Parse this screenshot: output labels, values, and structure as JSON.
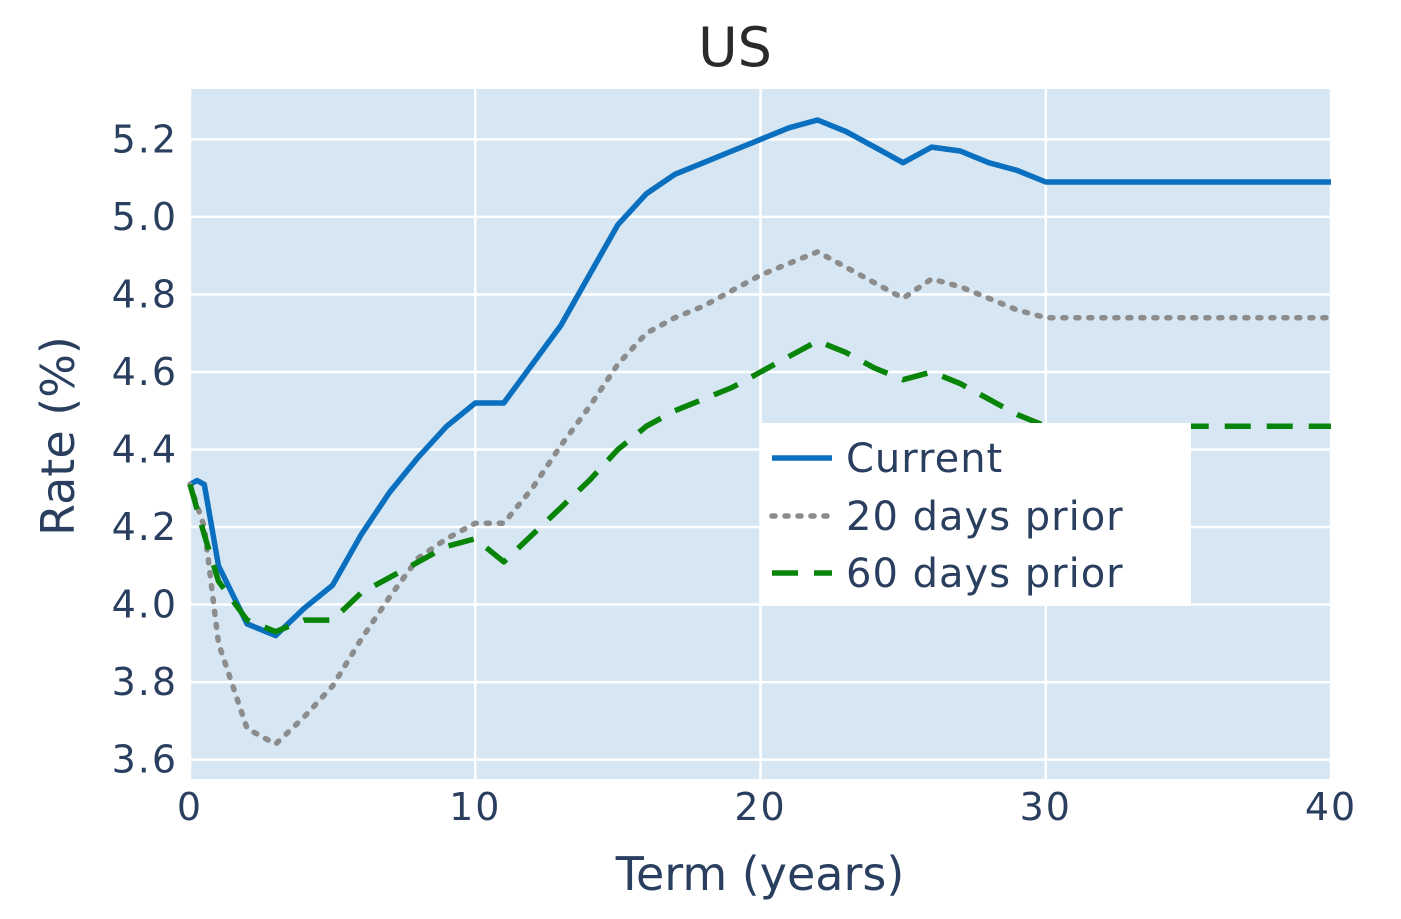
{
  "chart_data": {
    "type": "line",
    "title": "US",
    "xlabel": "Term (years)",
    "ylabel": "Rate (%)",
    "xlim": [
      0,
      40
    ],
    "ylim": [
      3.55,
      5.33
    ],
    "xticks": [
      0,
      10,
      20,
      30,
      40
    ],
    "yticks": [
      3.6,
      3.8,
      4.0,
      4.2,
      4.4,
      4.6,
      4.8,
      5.0,
      5.2
    ],
    "grid": true,
    "plot_background": "#d6e6f2",
    "legend_position": "center-right",
    "series": [
      {
        "name": "Current",
        "color": "#0b6fbf",
        "dash": "solid",
        "x": [
          0,
          0.25,
          0.5,
          1,
          2,
          3,
          4,
          5,
          6,
          7,
          8,
          9,
          10,
          11,
          12,
          13,
          14,
          15,
          16,
          17,
          18,
          19,
          20,
          21,
          22,
          23,
          24,
          25,
          26,
          27,
          28,
          29,
          30,
          35,
          40
        ],
        "y": [
          4.31,
          4.32,
          4.31,
          4.1,
          3.95,
          3.92,
          3.99,
          4.05,
          4.18,
          4.29,
          4.38,
          4.46,
          4.52,
          4.52,
          4.62,
          4.72,
          4.85,
          4.98,
          5.06,
          5.11,
          5.14,
          5.17,
          5.2,
          5.23,
          5.25,
          5.22,
          5.18,
          5.14,
          5.18,
          5.17,
          5.14,
          5.12,
          5.09,
          5.09,
          5.09
        ]
      },
      {
        "name": "20 days prior",
        "color": "#8c8c8c",
        "dash": "dot",
        "x": [
          0,
          0.5,
          1,
          2,
          3,
          4,
          5,
          6,
          7,
          8,
          9,
          10,
          11,
          12,
          13,
          14,
          15,
          16,
          17,
          18,
          19,
          20,
          21,
          22,
          23,
          24,
          25,
          26,
          27,
          28,
          29,
          30,
          35,
          40
        ],
        "y": [
          4.31,
          4.2,
          3.9,
          3.68,
          3.64,
          3.71,
          3.79,
          3.91,
          4.02,
          4.12,
          4.17,
          4.21,
          4.21,
          4.3,
          4.41,
          4.51,
          4.62,
          4.7,
          4.74,
          4.77,
          4.81,
          4.85,
          4.88,
          4.91,
          4.87,
          4.83,
          4.79,
          4.84,
          4.82,
          4.79,
          4.76,
          4.74,
          4.74,
          4.74
        ]
      },
      {
        "name": "60 days prior",
        "color": "#088408",
        "dash": "dash",
        "x": [
          0,
          0.5,
          1,
          2,
          3,
          4,
          5,
          6,
          7,
          8,
          9,
          10,
          11,
          12,
          13,
          14,
          15,
          16,
          17,
          18,
          19,
          20,
          21,
          22,
          23,
          24,
          25,
          26,
          27,
          28,
          29,
          30,
          35,
          40
        ],
        "y": [
          4.31,
          4.18,
          4.06,
          3.96,
          3.93,
          3.96,
          3.96,
          4.03,
          4.07,
          4.11,
          4.15,
          4.17,
          4.11,
          4.18,
          4.25,
          4.32,
          4.4,
          4.46,
          4.5,
          4.53,
          4.56,
          4.6,
          4.64,
          4.68,
          4.65,
          4.61,
          4.58,
          4.6,
          4.57,
          4.53,
          4.49,
          4.46,
          4.46,
          4.46
        ]
      }
    ]
  }
}
